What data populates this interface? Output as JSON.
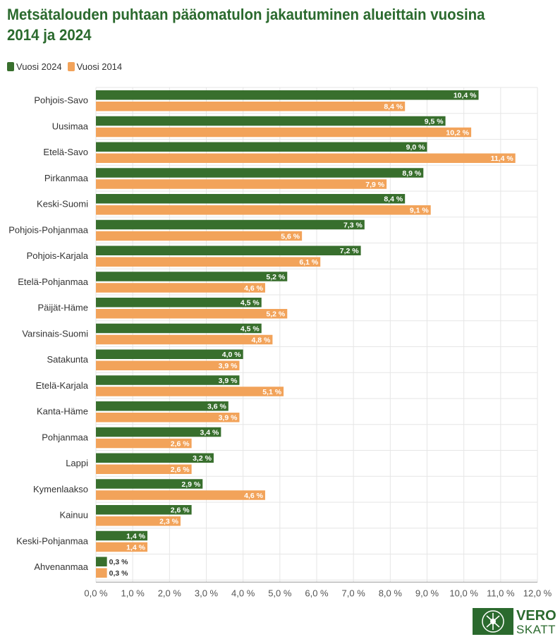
{
  "title": "Metsätalouden puhtaan pääomatulon jakautuminen alueittain vuosina 2014 ja 2024",
  "legend": [
    {
      "label": "Vuosi 2024",
      "color": "#386f2d"
    },
    {
      "label": "Vuosi 2014",
      "color": "#f2a35a"
    }
  ],
  "logo": {
    "line1": "VERO",
    "line2": "SKATT",
    "color": "#2b6a2e"
  },
  "chart_data": {
    "type": "bar",
    "orientation": "horizontal",
    "categories": [
      "Pohjois-Savo",
      "Uusimaa",
      "Etelä-Savo",
      "Pirkanmaa",
      "Keski-Suomi",
      "Pohjois-Pohjanmaa",
      "Pohjois-Karjala",
      "Etelä-Pohjanmaa",
      "Päijät-Häme",
      "Varsinais-Suomi",
      "Satakunta",
      "Etelä-Karjala",
      "Kanta-Häme",
      "Pohjanmaa",
      "Lappi",
      "Kymenlaakso",
      "Kainuu",
      "Keski-Pohjanmaa",
      "Ahvenanmaa"
    ],
    "series": [
      {
        "name": "Vuosi 2024",
        "color": "#386f2d",
        "values": [
          10.4,
          9.5,
          9.0,
          8.9,
          8.4,
          7.3,
          7.2,
          5.2,
          4.5,
          4.5,
          4.0,
          3.9,
          3.6,
          3.4,
          3.2,
          2.9,
          2.6,
          1.4,
          0.3
        ],
        "labels": [
          "10,4 %",
          "9,5 %",
          "9,0 %",
          "8,9 %",
          "8,4 %",
          "7,3 %",
          "7,2 %",
          "5,2 %",
          "4,5 %",
          "4,5 %",
          "4,0 %",
          "3,9 %",
          "3,6 %",
          "3,4 %",
          "3,2 %",
          "2,9 %",
          "2,6 %",
          "1,4 %",
          "0,3 %"
        ]
      },
      {
        "name": "Vuosi 2014",
        "color": "#f2a35a",
        "values": [
          8.4,
          10.2,
          11.4,
          7.9,
          9.1,
          5.6,
          6.1,
          4.6,
          5.2,
          4.8,
          3.9,
          5.1,
          3.9,
          2.6,
          2.6,
          4.6,
          2.3,
          1.4,
          0.3
        ],
        "labels": [
          "8,4 %",
          "10,2 %",
          "11,4 %",
          "7,9 %",
          "9,1 %",
          "5,6 %",
          "6,1 %",
          "4,6 %",
          "5,2 %",
          "4,8 %",
          "3,9 %",
          "5,1 %",
          "3,9 %",
          "2,6 %",
          "2,6 %",
          "4,6 %",
          "2,3 %",
          "1,4 %",
          "0,3 %"
        ]
      }
    ],
    "xlim": [
      0,
      12
    ],
    "xticks": [
      0,
      1,
      2,
      3,
      4,
      5,
      6,
      7,
      8,
      9,
      10,
      11,
      12
    ],
    "xtick_labels": [
      "0,0 %",
      "1,0 %",
      "2,0 %",
      "3,0 %",
      "4,0 %",
      "5,0 %",
      "6,0 %",
      "7,0 %",
      "8,0 %",
      "9,0 %",
      "10,0 %",
      "11,0 %",
      "12,0 %"
    ],
    "grid": "x",
    "legend_position": "top-left"
  }
}
